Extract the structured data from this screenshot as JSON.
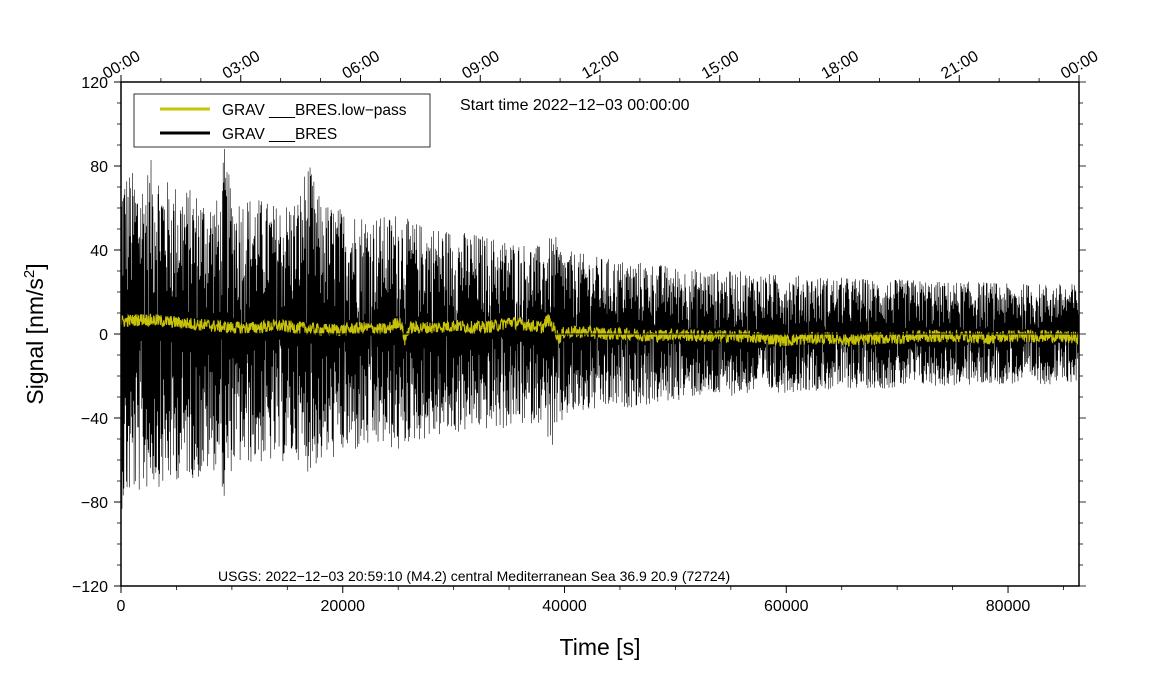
{
  "chart_data": {
    "type": "line",
    "xlabel": "Time [s]",
    "ylabel": "Signal [nm/s",
    "ylabel_sup": "2",
    "ylabel_end": "]",
    "xlim": [
      0,
      86400
    ],
    "ylim": [
      -120,
      120
    ],
    "xticks": [
      0,
      20000,
      40000,
      60000,
      80000
    ],
    "xtick_labels": [
      "0",
      "20000",
      "40000",
      "60000",
      "80000"
    ],
    "yticks": [
      -120,
      -80,
      -40,
      0,
      40,
      80,
      120
    ],
    "ytick_labels": [
      "−120",
      "−80",
      "−40",
      "0",
      "40",
      "80",
      "120"
    ],
    "top_axis": {
      "ticks": [
        0,
        10800,
        21600,
        32400,
        43200,
        54000,
        64800,
        75600,
        86400
      ],
      "labels": [
        "00:00",
        "03:00",
        "06:00",
        "09:00",
        "12:00",
        "15:00",
        "18:00",
        "21:00",
        "00:00"
      ]
    },
    "annotation_start": "Start time 2022−12−03 00:00:00",
    "annotation_event": "USGS: 2022−12−03 20:59:10 (M4.2) central Mediterranean Sea 36.9 20.9 (72724)",
    "legend_position": "top-left",
    "grid": false,
    "series": [
      {
        "name": "GRAV ___BRES",
        "color": "#000000",
        "x": [
          0,
          1000,
          2000,
          3000,
          4000,
          5000,
          6000,
          7000,
          8000,
          9000,
          9300,
          10000,
          12000,
          14000,
          16000,
          16800,
          18000,
          20000,
          22000,
          24000,
          25200,
          26000,
          28000,
          30000,
          32000,
          34000,
          36000,
          38000,
          39000,
          40000,
          42000,
          44000,
          46000,
          48000,
          50000,
          52000,
          54000,
          56000,
          58000,
          60000,
          62000,
          64000,
          66000,
          68000,
          70000,
          72000,
          74000,
          76000,
          78000,
          80000,
          82000,
          84000,
          86400
        ],
        "envelope_max": [
          80,
          78,
          76,
          86,
          74,
          72,
          70,
          68,
          66,
          64,
          90,
          68,
          66,
          62,
          66,
          84,
          64,
          60,
          58,
          56,
          60,
          54,
          52,
          50,
          48,
          46,
          44,
          42,
          48,
          40,
          38,
          36,
          35,
          34,
          32,
          31,
          30,
          30,
          29,
          28,
          28,
          27,
          27,
          26,
          26,
          26,
          25,
          25,
          25,
          24,
          24,
          24,
          24
        ],
        "envelope_min": [
          -84,
          -78,
          -76,
          -72,
          -74,
          -70,
          -68,
          -70,
          -66,
          -64,
          -86,
          -64,
          -62,
          -62,
          -60,
          -66,
          -62,
          -58,
          -56,
          -54,
          -58,
          -52,
          -50,
          -48,
          -46,
          -46,
          -44,
          -42,
          -58,
          -40,
          -38,
          -36,
          -35,
          -34,
          -32,
          -30,
          -30,
          -29,
          -28,
          -28,
          -27,
          -27,
          -26,
          -26,
          -26,
          -25,
          -25,
          -25,
          -24,
          -24,
          -24,
          -24,
          -23
        ]
      },
      {
        "name": "GRAV ___BRES.low−pass",
        "color": "#c8c30a",
        "x": [
          0,
          2000,
          4000,
          6000,
          8000,
          10000,
          12000,
          14000,
          16000,
          18000,
          20000,
          22000,
          24000,
          25000,
          25300,
          25600,
          26000,
          28000,
          30000,
          32000,
          34000,
          35000,
          36000,
          38000,
          38500,
          39000,
          39500,
          40000,
          42000,
          44000,
          46000,
          48000,
          50000,
          52000,
          54000,
          56000,
          58000,
          60000,
          62000,
          64000,
          66000,
          68000,
          70000,
          72000,
          74000,
          76000,
          78000,
          80000,
          82000,
          84000,
          86400
        ],
        "values": [
          6,
          7,
          6,
          5,
          4,
          3,
          3,
          4,
          3,
          2,
          2,
          3,
          2,
          6,
          4,
          -3,
          3,
          3,
          4,
          3,
          4,
          6,
          5,
          3,
          7,
          3,
          -2,
          1,
          1,
          0,
          0,
          -1,
          0,
          -1,
          -1,
          -1,
          -2,
          -3,
          -2,
          -2,
          -3,
          -2,
          -2,
          -1,
          -1,
          -1,
          -2,
          -1,
          -1,
          -1,
          -2
        ],
        "noise_amplitude": 3
      }
    ]
  }
}
